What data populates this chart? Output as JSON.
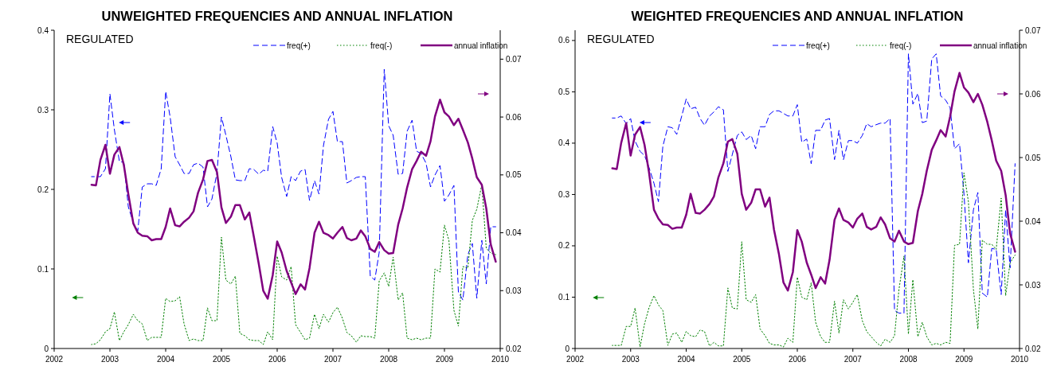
{
  "chart_data": [
    {
      "type": "line",
      "title": "UNWEIGHTED FREQUENCIES AND ANNUAL INFLATION",
      "annotations": [
        "REGULATED"
      ],
      "x": [
        2002.67,
        2002.75,
        2002.83,
        2002.92,
        2003.0,
        2003.08,
        2003.17,
        2003.25,
        2003.33,
        2003.42,
        2003.5,
        2003.58,
        2003.67,
        2003.75,
        2003.83,
        2003.92,
        2004.0,
        2004.08,
        2004.17,
        2004.25,
        2004.33,
        2004.42,
        2004.5,
        2004.58,
        2004.67,
        2004.75,
        2004.83,
        2004.92,
        2005.0,
        2005.08,
        2005.17,
        2005.25,
        2005.33,
        2005.42,
        2005.5,
        2005.58,
        2005.67,
        2005.75,
        2005.83,
        2005.92,
        2006.0,
        2006.08,
        2006.17,
        2006.25,
        2006.33,
        2006.42,
        2006.5,
        2006.58,
        2006.67,
        2006.75,
        2006.83,
        2006.92,
        2007.0,
        2007.08,
        2007.17,
        2007.25,
        2007.33,
        2007.42,
        2007.5,
        2007.58,
        2007.67,
        2007.75,
        2007.83,
        2007.92,
        2008.0,
        2008.08,
        2008.17,
        2008.25,
        2008.33,
        2008.42,
        2008.5,
        2008.58,
        2008.67,
        2008.75,
        2008.83,
        2008.92,
        2009.0,
        2009.08,
        2009.17,
        2009.25,
        2009.33,
        2009.42,
        2009.5,
        2009.58,
        2009.67,
        2009.75,
        2009.83,
        2009.92
      ],
      "xlim": [
        2002,
        2010
      ],
      "xticks": [
        2002,
        2003,
        2004,
        2005,
        2006,
        2007,
        2008,
        2009,
        2010
      ],
      "ylim": [
        0,
        0.4
      ],
      "yticks": [
        0,
        0.1,
        0.2,
        0.3,
        0.4
      ],
      "y2lim": [
        0.02,
        0.075
      ],
      "y2ticks": [
        0.02,
        0.03,
        0.04,
        0.05,
        0.06,
        0.07
      ],
      "legend": "top right",
      "grid": false,
      "marker": "none",
      "series": [
        {
          "name": "freq(+)",
          "color": "#0000ff",
          "line_style": "dashed",
          "values": [
            0.216,
            0.216,
            0.216,
            0.226,
            0.32,
            0.275,
            0.235,
            0.234,
            0.178,
            0.158,
            0.148,
            0.203,
            0.207,
            0.207,
            0.205,
            0.226,
            0.323,
            0.291,
            0.241,
            0.231,
            0.22,
            0.22,
            0.231,
            0.233,
            0.228,
            0.178,
            0.188,
            0.221,
            0.291,
            0.268,
            0.241,
            0.212,
            0.211,
            0.211,
            0.226,
            0.225,
            0.219,
            0.224,
            0.223,
            0.279,
            0.258,
            0.215,
            0.191,
            0.216,
            0.211,
            0.223,
            0.225,
            0.186,
            0.211,
            0.194,
            0.255,
            0.288,
            0.298,
            0.26,
            0.26,
            0.208,
            0.211,
            0.215,
            0.216,
            0.216,
            0.091,
            0.086,
            0.121,
            0.351,
            0.28,
            0.268,
            0.219,
            0.22,
            0.273,
            0.287,
            0.248,
            0.245,
            0.233,
            0.203,
            0.218,
            0.23,
            0.185,
            0.193,
            0.205,
            0.071,
            0.061,
            0.118,
            0.132,
            0.063,
            0.136,
            0.081,
            0.153,
            0.153
          ]
        },
        {
          "name": "freq(-)",
          "color": "#008000",
          "line_style": "dotted",
          "values": [
            0.005,
            0.006,
            0.011,
            0.021,
            0.025,
            0.046,
            0.01,
            0.021,
            0.03,
            0.043,
            0.035,
            0.031,
            0.01,
            0.014,
            0.014,
            0.014,
            0.063,
            0.059,
            0.06,
            0.065,
            0.031,
            0.01,
            0.012,
            0.01,
            0.01,
            0.051,
            0.035,
            0.035,
            0.14,
            0.086,
            0.081,
            0.091,
            0.019,
            0.016,
            0.011,
            0.01,
            0.01,
            0.005,
            0.021,
            0.011,
            0.116,
            0.09,
            0.086,
            0.103,
            0.03,
            0.02,
            0.011,
            0.013,
            0.043,
            0.025,
            0.043,
            0.033,
            0.045,
            0.052,
            0.038,
            0.02,
            0.016,
            0.008,
            0.016,
            0.015,
            0.015,
            0.013,
            0.085,
            0.095,
            0.078,
            0.115,
            0.061,
            0.07,
            0.013,
            0.011,
            0.013,
            0.011,
            0.013,
            0.013,
            0.1,
            0.096,
            0.155,
            0.136,
            0.048,
            0.028,
            0.103,
            0.101,
            0.161,
            0.175,
            0.206,
            0.126,
            0.12,
            0.118
          ]
        },
        {
          "name": "annual  inflation",
          "color": "#800080",
          "line_style": "solid",
          "axis": "y2",
          "values": [
            0.0483,
            0.0482,
            0.0526,
            0.0552,
            0.0502,
            0.0535,
            0.0548,
            0.0517,
            0.0467,
            0.0416,
            0.04,
            0.0395,
            0.0394,
            0.0387,
            0.0389,
            0.0389,
            0.041,
            0.0442,
            0.0413,
            0.0411,
            0.0419,
            0.0426,
            0.0437,
            0.0469,
            0.0492,
            0.0524,
            0.0526,
            0.0505,
            0.0444,
            0.0417,
            0.0428,
            0.0448,
            0.0448,
            0.0423,
            0.0435,
            0.0394,
            0.0346,
            0.03,
            0.0286,
            0.0327,
            0.0385,
            0.0366,
            0.0334,
            0.0314,
            0.0294,
            0.0311,
            0.0302,
            0.0339,
            0.04,
            0.0419,
            0.04,
            0.0396,
            0.039,
            0.04,
            0.041,
            0.0391,
            0.0387,
            0.039,
            0.0404,
            0.0394,
            0.0372,
            0.0367,
            0.0384,
            0.037,
            0.0364,
            0.0365,
            0.0414,
            0.0442,
            0.0478,
            0.051,
            0.0524,
            0.054,
            0.0533,
            0.0558,
            0.0601,
            0.063,
            0.0608,
            0.0601,
            0.0586,
            0.0597,
            0.0578,
            0.0556,
            0.0528,
            0.0496,
            0.0483,
            0.0442,
            0.038,
            0.035
          ]
        }
      ]
    },
    {
      "type": "line",
      "title": "WEIGHTED FREQUENCIES AND ANNUAL INFLATION",
      "annotations": [
        "REGULATED"
      ],
      "x": [
        2002.67,
        2002.75,
        2002.83,
        2002.92,
        2003.0,
        2003.08,
        2003.17,
        2003.25,
        2003.33,
        2003.42,
        2003.5,
        2003.58,
        2003.67,
        2003.75,
        2003.83,
        2003.92,
        2004.0,
        2004.08,
        2004.17,
        2004.25,
        2004.33,
        2004.42,
        2004.5,
        2004.58,
        2004.67,
        2004.75,
        2004.83,
        2004.92,
        2005.0,
        2005.08,
        2005.17,
        2005.25,
        2005.33,
        2005.42,
        2005.5,
        2005.58,
        2005.67,
        2005.75,
        2005.83,
        2005.92,
        2006.0,
        2006.08,
        2006.17,
        2006.25,
        2006.33,
        2006.42,
        2006.5,
        2006.58,
        2006.67,
        2006.75,
        2006.83,
        2006.92,
        2007.0,
        2007.08,
        2007.17,
        2007.25,
        2007.33,
        2007.42,
        2007.5,
        2007.58,
        2007.67,
        2007.75,
        2007.83,
        2007.92,
        2008.0,
        2008.08,
        2008.17,
        2008.25,
        2008.33,
        2008.42,
        2008.5,
        2008.58,
        2008.67,
        2008.75,
        2008.83,
        2008.92,
        2009.0,
        2009.08,
        2009.17,
        2009.25,
        2009.33,
        2009.42,
        2009.5,
        2009.58,
        2009.67,
        2009.75,
        2009.83,
        2009.92
      ],
      "xlim": [
        2002,
        2010
      ],
      "xticks": [
        2002,
        2003,
        2004,
        2005,
        2006,
        2007,
        2008,
        2009,
        2010
      ],
      "ylim": [
        0,
        0.62
      ],
      "yticks": [
        0,
        0.1,
        0.2,
        0.3,
        0.4,
        0.5,
        0.6
      ],
      "y2lim": [
        0.02,
        0.07
      ],
      "y2ticks": [
        0.02,
        0.03,
        0.04,
        0.05,
        0.06,
        0.07
      ],
      "legend": "top right",
      "grid": false,
      "marker": "none",
      "series": [
        {
          "name": "freq(+)",
          "color": "#0000ff",
          "line_style": "dashed",
          "values": [
            0.449,
            0.449,
            0.453,
            0.438,
            0.448,
            0.404,
            0.384,
            0.376,
            0.353,
            0.322,
            0.286,
            0.394,
            0.432,
            0.43,
            0.417,
            0.453,
            0.486,
            0.467,
            0.47,
            0.448,
            0.435,
            0.453,
            0.461,
            0.471,
            0.465,
            0.345,
            0.378,
            0.415,
            0.422,
            0.407,
            0.415,
            0.389,
            0.432,
            0.432,
            0.456,
            0.463,
            0.463,
            0.458,
            0.453,
            0.453,
            0.475,
            0.402,
            0.408,
            0.36,
            0.425,
            0.425,
            0.445,
            0.448,
            0.368,
            0.425,
            0.368,
            0.405,
            0.405,
            0.4,
            0.415,
            0.438,
            0.432,
            0.436,
            0.439,
            0.439,
            0.448,
            0.074,
            0.069,
            0.069,
            0.574,
            0.476,
            0.497,
            0.44,
            0.443,
            0.564,
            0.574,
            0.492,
            0.484,
            0.469,
            0.389,
            0.399,
            0.301,
            0.167,
            0.27,
            0.304,
            0.108,
            0.1,
            0.195,
            0.193,
            0.105,
            0.27,
            0.157,
            0.36
          ]
        },
        {
          "name": "freq(-)",
          "color": "#008000",
          "line_style": "dotted",
          "values": [
            0.006,
            0.006,
            0.006,
            0.043,
            0.043,
            0.079,
            0.003,
            0.048,
            0.079,
            0.103,
            0.085,
            0.074,
            0.006,
            0.028,
            0.03,
            0.012,
            0.033,
            0.025,
            0.023,
            0.036,
            0.033,
            0.005,
            0.012,
            0.005,
            0.005,
            0.118,
            0.079,
            0.077,
            0.208,
            0.095,
            0.09,
            0.105,
            0.038,
            0.025,
            0.01,
            0.007,
            0.007,
            0.003,
            0.02,
            0.012,
            0.139,
            0.1,
            0.095,
            0.128,
            0.051,
            0.023,
            0.012,
            0.012,
            0.092,
            0.03,
            0.095,
            0.077,
            0.09,
            0.105,
            0.054,
            0.033,
            0.023,
            0.012,
            0.005,
            0.018,
            0.012,
            0.025,
            0.115,
            0.18,
            0.028,
            0.134,
            0.023,
            0.051,
            0.023,
            0.007,
            0.01,
            0.007,
            0.012,
            0.01,
            0.201,
            0.203,
            0.342,
            0.286,
            0.115,
            0.038,
            0.211,
            0.203,
            0.203,
            0.193,
            0.293,
            0.103,
            0.167,
            0.182
          ]
        },
        {
          "name": "annual inflation",
          "color": "#800080",
          "line_style": "solid",
          "axis": "y2",
          "values": [
            0.0483,
            0.0482,
            0.0523,
            0.0554,
            0.0503,
            0.0536,
            0.0548,
            0.052,
            0.0477,
            0.0418,
            0.0404,
            0.0395,
            0.0394,
            0.0388,
            0.039,
            0.039,
            0.041,
            0.0443,
            0.0413,
            0.0412,
            0.0418,
            0.0427,
            0.0439,
            0.0469,
            0.0491,
            0.0525,
            0.0529,
            0.0506,
            0.0443,
            0.0418,
            0.0429,
            0.045,
            0.045,
            0.0423,
            0.0437,
            0.0387,
            0.0348,
            0.0304,
            0.0291,
            0.032,
            0.0386,
            0.0368,
            0.0335,
            0.0316,
            0.0295,
            0.0312,
            0.0302,
            0.0339,
            0.0402,
            0.042,
            0.0402,
            0.0398,
            0.039,
            0.0404,
            0.0412,
            0.0391,
            0.0387,
            0.0391,
            0.0406,
            0.0395,
            0.0373,
            0.0368,
            0.0385,
            0.0368,
            0.0364,
            0.0366,
            0.0416,
            0.0443,
            0.0479,
            0.0512,
            0.0527,
            0.0543,
            0.0533,
            0.0564,
            0.0604,
            0.0633,
            0.061,
            0.0602,
            0.0587,
            0.06,
            0.0583,
            0.0556,
            0.0527,
            0.0495,
            0.0479,
            0.0441,
            0.0381,
            0.0352
          ]
        }
      ]
    }
  ]
}
